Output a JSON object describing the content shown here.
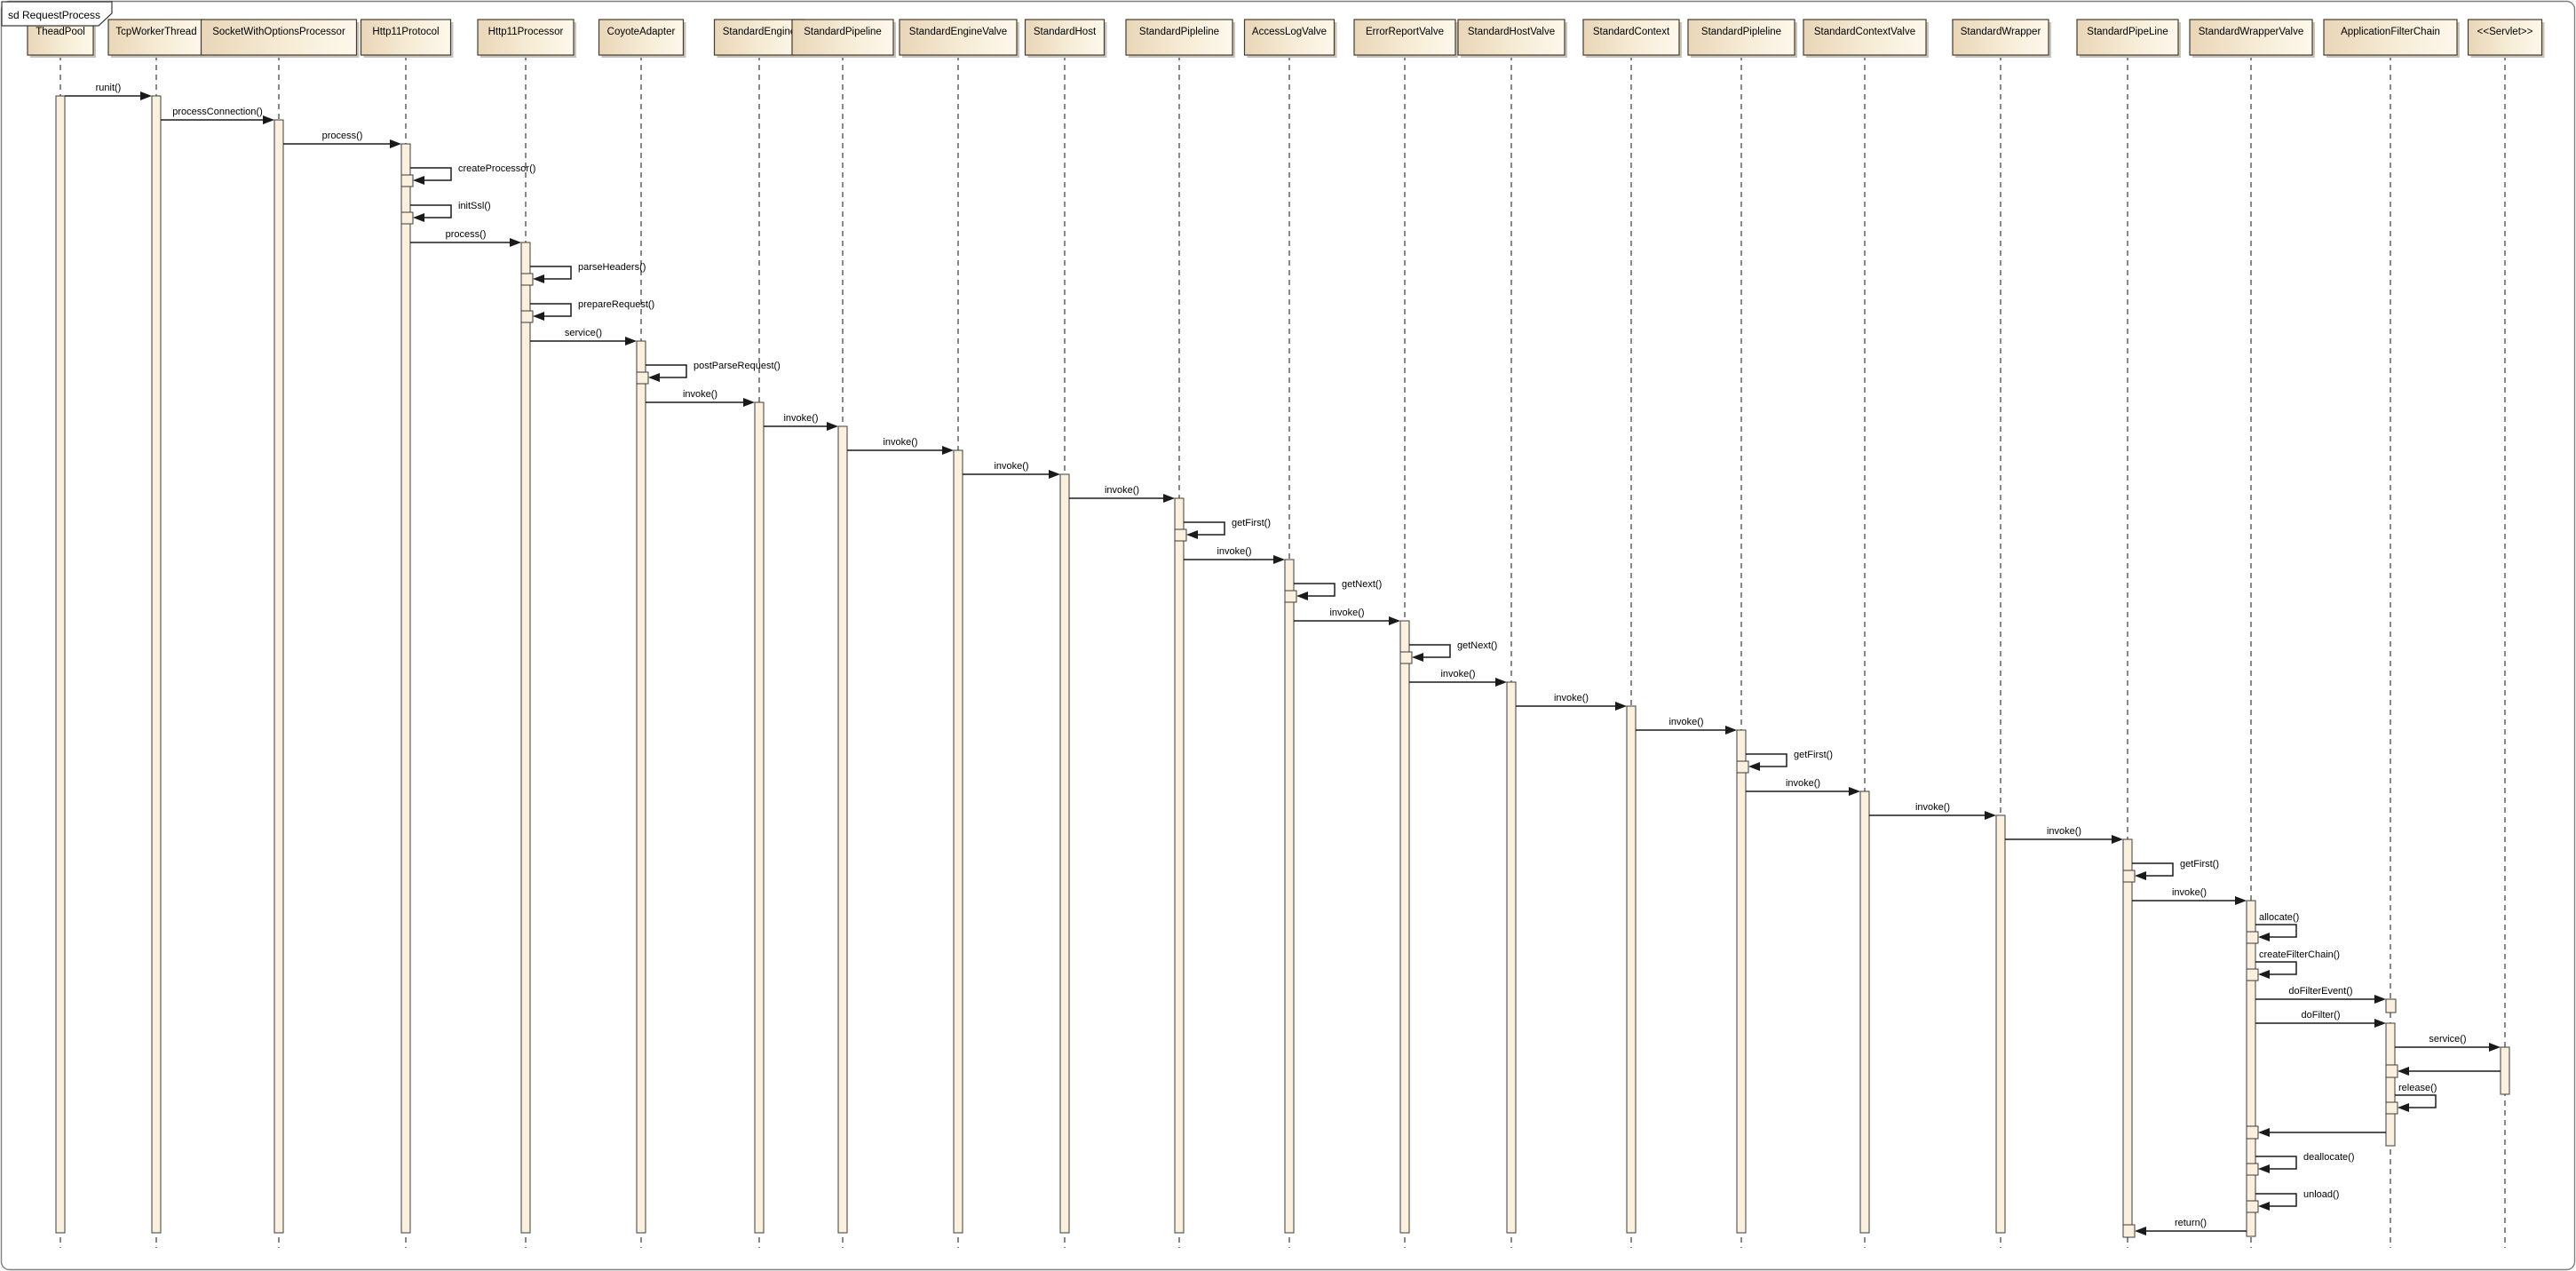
{
  "frame": {
    "label": "sd RequestProcess"
  },
  "colors": {
    "background": "#ffffff",
    "frame_border": "#7f7f7f",
    "box_fill_left": "#e9d6b8",
    "box_fill_mid": "#f6ecd6",
    "box_fill_right": "#fdf8ec",
    "box_border": "#473c28",
    "box_shadow": "#c9c5bd",
    "activation_fill": "#faf0dd",
    "activation_border": "#3c3c3c",
    "lifeline_color": "#3a3a3a",
    "line": "#1a1a1a",
    "text": "#000000"
  },
  "lifelines": [
    {
      "name": "TheadPool"
    },
    {
      "name": "TcpWorkerThread"
    },
    {
      "name": "SocketWithOptionsProcessor"
    },
    {
      "name": "Http11Protocol"
    },
    {
      "name": "Http11Processor"
    },
    {
      "name": "CoyoteAdapter"
    },
    {
      "name": "StandardEngine"
    },
    {
      "name": "StandardPipeline"
    },
    {
      "name": "StandardEngineValve"
    },
    {
      "name": "StandardHost"
    },
    {
      "name": "StandardPipleline"
    },
    {
      "name": "AccessLogValve"
    },
    {
      "name": "ErrorReportValve"
    },
    {
      "name": "StandardHostValve"
    },
    {
      "name": "StandardContext"
    },
    {
      "name": "StandardPipleline"
    },
    {
      "name": "StandardContextValve"
    },
    {
      "name": "StandardWrapper"
    },
    {
      "name": "StandardPipeLine"
    },
    {
      "name": "StandardWrapperValve"
    },
    {
      "name": "ApplicationFilterChain"
    },
    {
      "name": "<<Servlet>>"
    }
  ],
  "messages": [
    {
      "type": "call",
      "from": 0,
      "to": 1,
      "label": "runit()"
    },
    {
      "type": "call",
      "from": 1,
      "to": 2,
      "label": "processConnection()"
    },
    {
      "type": "call",
      "from": 2,
      "to": 3,
      "label": "process()"
    },
    {
      "type": "self",
      "lifeline": 3,
      "label": "createProcessor()"
    },
    {
      "type": "self",
      "lifeline": 3,
      "label": "initSsl()"
    },
    {
      "type": "call",
      "from": 3,
      "to": 4,
      "label": "process()"
    },
    {
      "type": "self",
      "lifeline": 4,
      "label": "parseHeaders()"
    },
    {
      "type": "self",
      "lifeline": 4,
      "label": "prepareRequest()"
    },
    {
      "type": "call",
      "from": 4,
      "to": 5,
      "label": "service()"
    },
    {
      "type": "self",
      "lifeline": 5,
      "label": "postParseRequest()"
    },
    {
      "type": "call",
      "from": 5,
      "to": 6,
      "label": "invoke()"
    },
    {
      "type": "call",
      "from": 6,
      "to": 7,
      "label": "invoke()"
    },
    {
      "type": "call",
      "from": 7,
      "to": 8,
      "label": "invoke()"
    },
    {
      "type": "call",
      "from": 8,
      "to": 9,
      "label": "invoke()"
    },
    {
      "type": "call",
      "from": 9,
      "to": 10,
      "label": "invoke()"
    },
    {
      "type": "self",
      "lifeline": 10,
      "label": "getFirst()"
    },
    {
      "type": "call",
      "from": 10,
      "to": 11,
      "label": "invoke()"
    },
    {
      "type": "self",
      "lifeline": 11,
      "label": "getNext()"
    },
    {
      "type": "call",
      "from": 11,
      "to": 12,
      "label": "invoke()"
    },
    {
      "type": "self",
      "lifeline": 12,
      "label": "getNext()"
    },
    {
      "type": "call",
      "from": 12,
      "to": 13,
      "label": "invoke()"
    },
    {
      "type": "call",
      "from": 13,
      "to": 14,
      "label": "invoke()"
    },
    {
      "type": "call",
      "from": 14,
      "to": 15,
      "label": "invoke()"
    },
    {
      "type": "self",
      "lifeline": 15,
      "label": "getFirst()"
    },
    {
      "type": "call",
      "from": 15,
      "to": 16,
      "label": "invoke()"
    },
    {
      "type": "call",
      "from": 16,
      "to": 17,
      "label": "invoke()"
    },
    {
      "type": "call",
      "from": 17,
      "to": 18,
      "label": "invoke()"
    },
    {
      "type": "self",
      "lifeline": 18,
      "label": "getFirst()"
    },
    {
      "type": "call",
      "from": 18,
      "to": 19,
      "label": "invoke()"
    },
    {
      "type": "self",
      "lifeline": 19,
      "label": "allocate()",
      "label_above": true
    },
    {
      "type": "self",
      "lifeline": 19,
      "label": "createFilterChain()",
      "label_above": true
    },
    {
      "type": "call",
      "from": 19,
      "to": 20,
      "label": "doFilterEvent()",
      "short_activation": true
    },
    {
      "type": "call",
      "from": 19,
      "to": 20,
      "label": "doFilter()"
    },
    {
      "type": "call",
      "from": 20,
      "to": 21,
      "label": "service()"
    },
    {
      "type": "return",
      "from": 21,
      "to": 20,
      "label": ""
    },
    {
      "type": "self",
      "lifeline": 20,
      "label": "release()",
      "label_above": true
    },
    {
      "type": "return",
      "from": 20,
      "to": 19,
      "label": ""
    },
    {
      "type": "self",
      "lifeline": 19,
      "label": "deallocate()"
    },
    {
      "type": "self",
      "lifeline": 19,
      "label": "unload()"
    },
    {
      "type": "return",
      "from": 19,
      "to": 18,
      "label": "return()"
    }
  ]
}
